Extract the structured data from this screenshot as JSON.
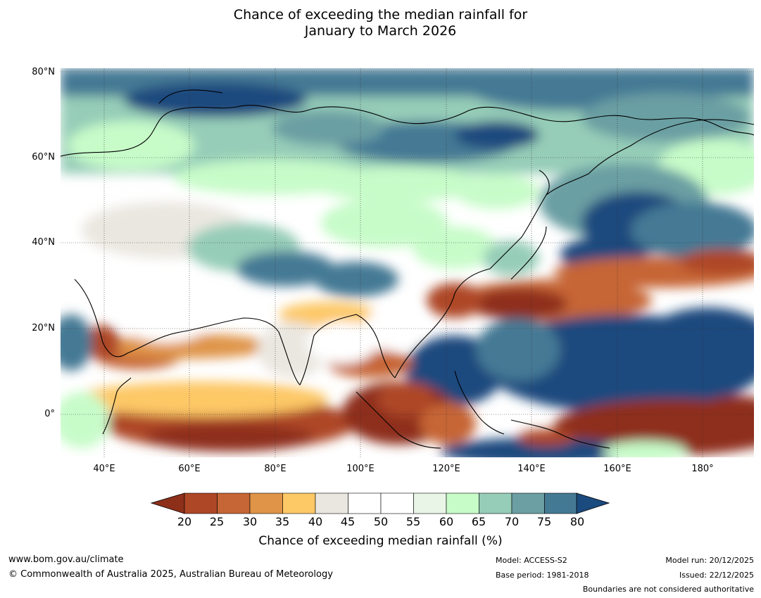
{
  "title": {
    "line1": "Chance of exceeding the median rainfall for",
    "line2": "January to March 2026"
  },
  "map": {
    "lat_labels": [
      "80°N",
      "60°N",
      "40°N",
      "20°N",
      "0°"
    ],
    "lon_labels": [
      "40°E",
      "60°E",
      "80°E",
      "100°E",
      "120°E",
      "140°E",
      "160°E",
      "180°"
    ]
  },
  "colorbar": {
    "ticks": [
      "20",
      "25",
      "30",
      "35",
      "40",
      "45",
      "50",
      "55",
      "60",
      "65",
      "70",
      "75",
      "80"
    ],
    "colors": [
      "#8e2f1a",
      "#ae4726",
      "#c66535",
      "#df9448",
      "#fdc866",
      "#eae7e0",
      "#ffffff",
      "#ffffff",
      "#e9f5e7",
      "#c7fcc9",
      "#96cdb8",
      "#6b9fa3",
      "#447994",
      "#1b4a7e"
    ],
    "label": "Chance of exceeding median rainfall (%)"
  },
  "footer": {
    "website": "www.bom.gov.au/climate",
    "copyright": "© Commonwealth of Australia 2025, Australian Bureau of Meteorology",
    "model": "Model: ACCESS-S2",
    "base_period": "Base period: 1981-2018",
    "model_run": "Model run: 20/12/2025",
    "issued": "Issued: 22/12/2025",
    "disclaimer": "Boundaries are not considered authoritative"
  }
}
